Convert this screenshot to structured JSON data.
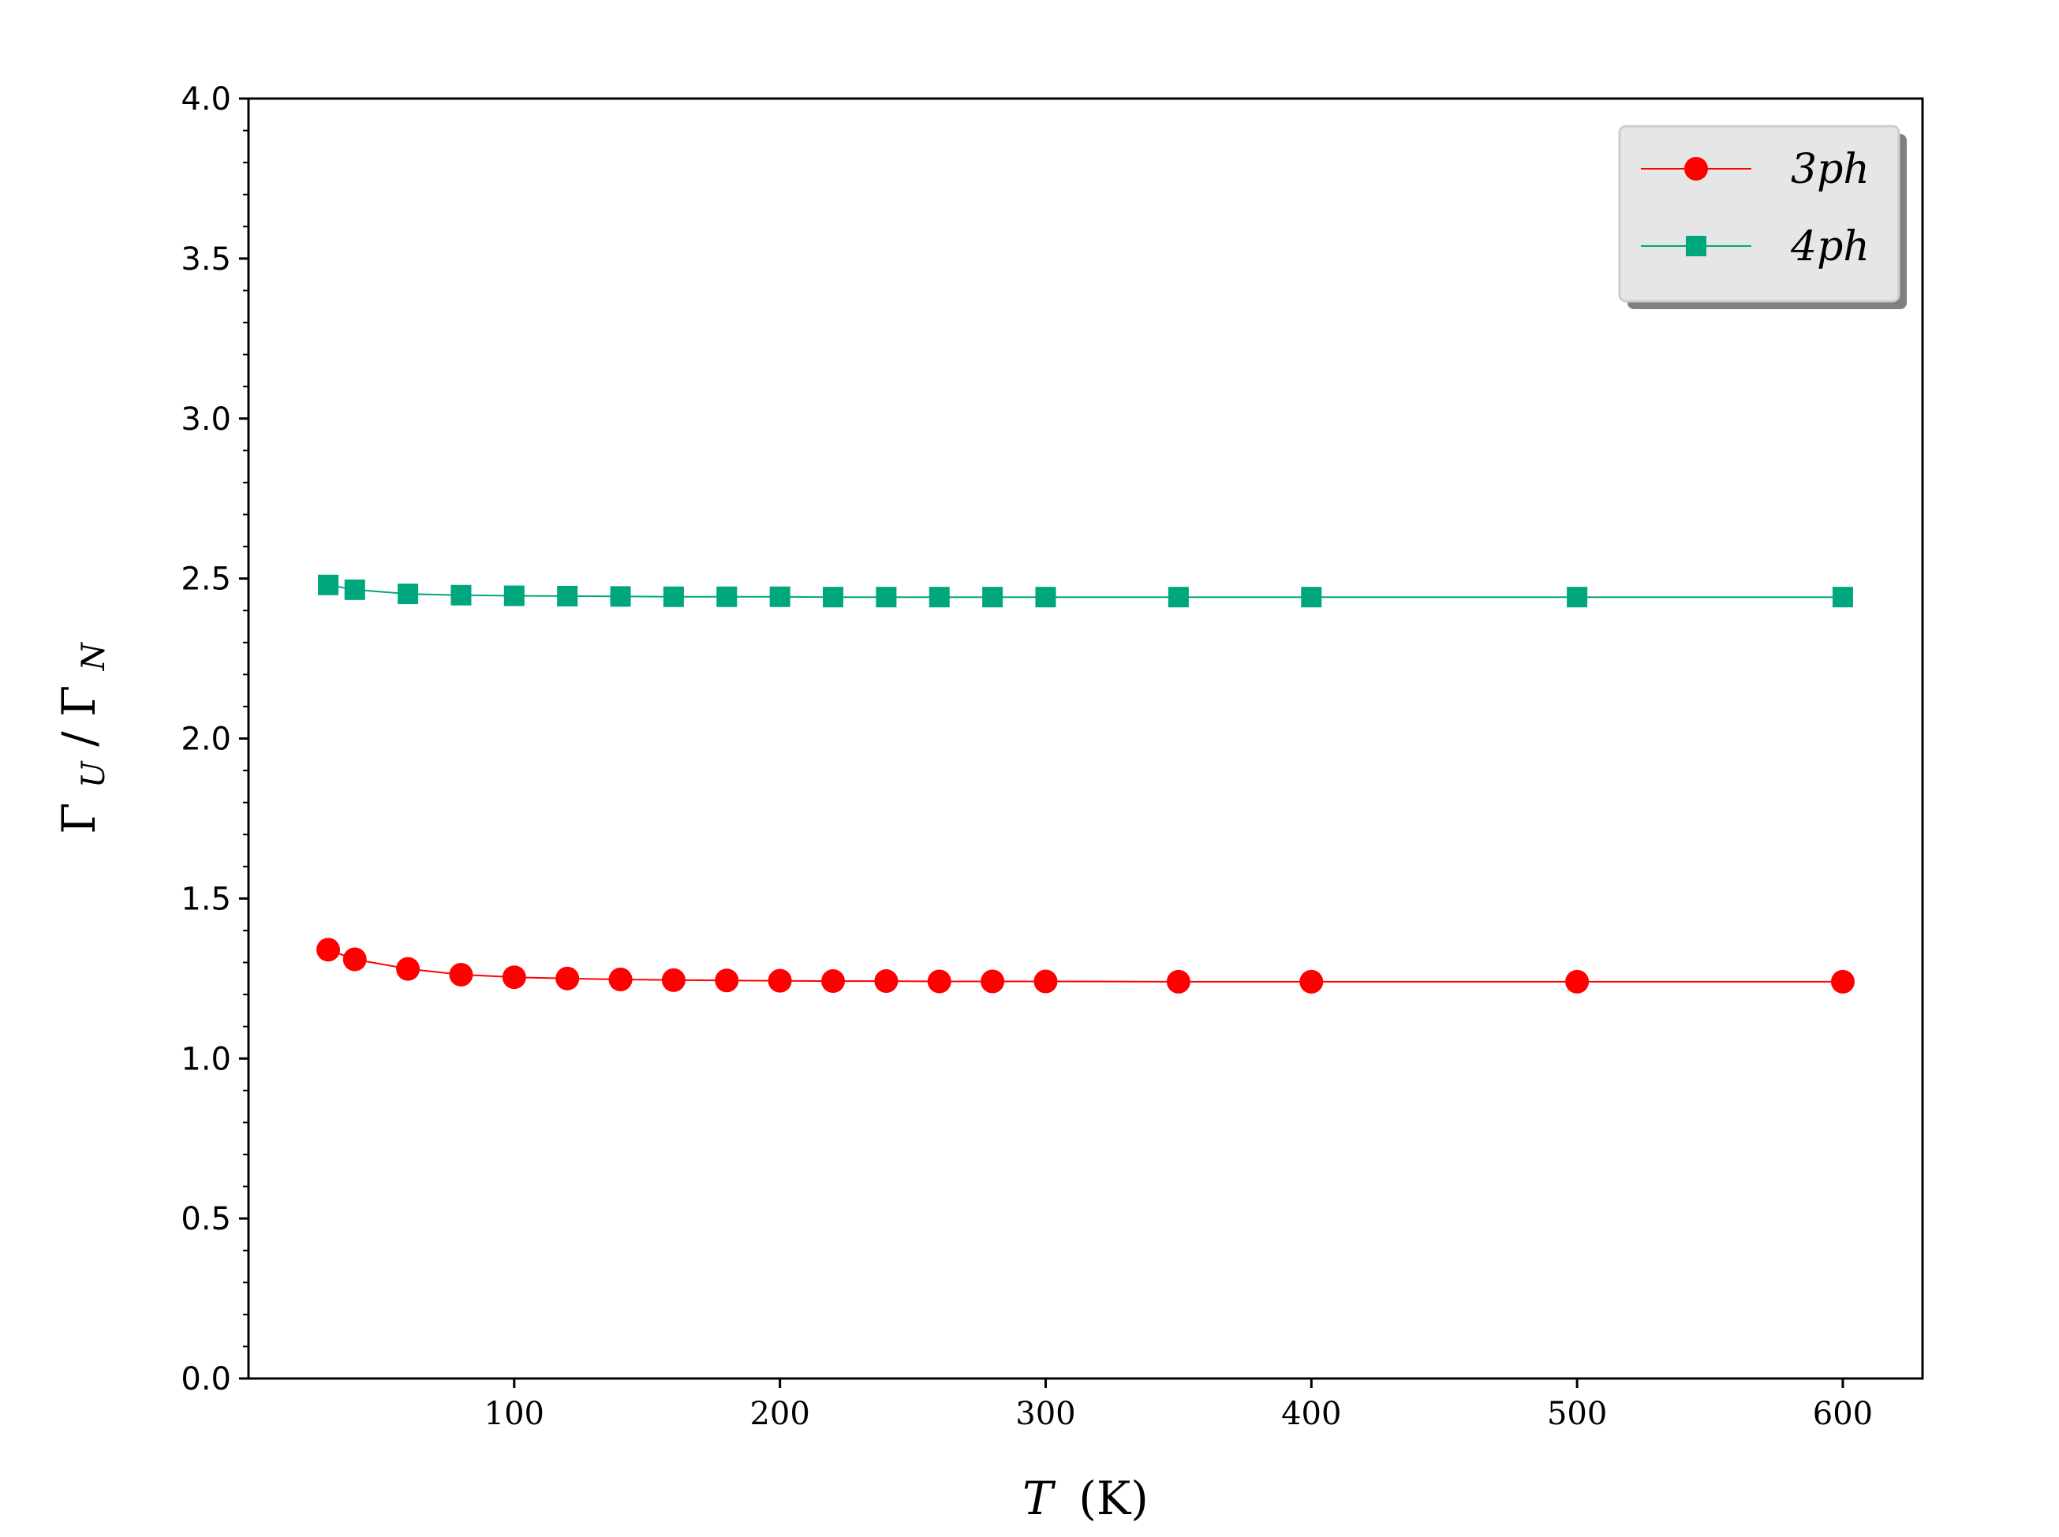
{
  "chart_data": {
    "type": "line",
    "xlabel_main": "T",
    "xlabel_unit": "(K)",
    "ylabel_main": "ΓU/ΓN",
    "ylabel": {
      "base1": "Γ",
      "sub1": "U",
      "slash": "/",
      "base2": "Γ",
      "sub2": "N"
    },
    "xlim": [
      0,
      630
    ],
    "ylim": [
      0.0,
      4.0
    ],
    "xticks": [
      100,
      200,
      300,
      400,
      500,
      600
    ],
    "xtick_labels": [
      "100",
      "200",
      "300",
      "400",
      "500",
      "600"
    ],
    "yticks": [
      0.0,
      0.5,
      1.0,
      1.5,
      2.0,
      2.5,
      3.0,
      3.5,
      4.0
    ],
    "ytick_labels": [
      "0.0",
      "0.5",
      "1.0",
      "1.5",
      "2.0",
      "2.5",
      "3.0",
      "3.5",
      "4.0"
    ],
    "legend_position": "top-right",
    "grid": false,
    "x": [
      30,
      40,
      60,
      80,
      100,
      120,
      140,
      160,
      180,
      200,
      220,
      240,
      260,
      280,
      300,
      350,
      400,
      500,
      600
    ],
    "series": [
      {
        "name": "3ph",
        "color": "#ff0000",
        "marker": "circle",
        "values": [
          1.34,
          1.31,
          1.28,
          1.262,
          1.254,
          1.25,
          1.247,
          1.245,
          1.244,
          1.243,
          1.242,
          1.242,
          1.241,
          1.241,
          1.241,
          1.24,
          1.24,
          1.24,
          1.24
        ]
      },
      {
        "name": "4ph",
        "color": "#00a67e",
        "marker": "square",
        "values": [
          2.48,
          2.465,
          2.452,
          2.448,
          2.446,
          2.445,
          2.444,
          2.443,
          2.443,
          2.443,
          2.442,
          2.442,
          2.442,
          2.442,
          2.442,
          2.442,
          2.442,
          2.442,
          2.442
        ]
      }
    ]
  }
}
